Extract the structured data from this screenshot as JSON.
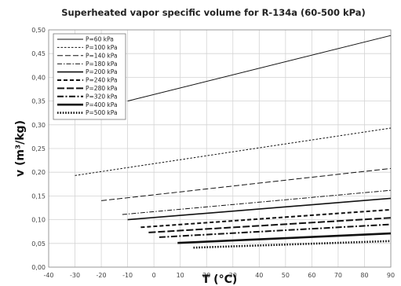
{
  "chart_data": {
    "type": "line",
    "title": "Superheated vapor specific volume for R-134a (60-500 kPa)",
    "xlabel": "T (°C)",
    "ylabel": "v (m³/kg)",
    "xlim": [
      -40,
      90
    ],
    "ylim": [
      0,
      0.5
    ],
    "x_ticks": [
      "-40",
      "-30",
      "-20",
      "-10",
      "0",
      "10",
      "20",
      "30",
      "40",
      "50",
      "60",
      "70",
      "80",
      "90"
    ],
    "y_ticks": [
      "0,00",
      "0,05",
      "0,10",
      "0,15",
      "0,20",
      "0,25",
      "0,30",
      "0,35",
      "0,40",
      "0,45",
      "0,50"
    ],
    "grid": true,
    "legend_position": "top-left",
    "series": [
      {
        "name": "P=60 kPa",
        "style": "solid-thin",
        "x": [
          -10,
          90
        ],
        "y": [
          0.35,
          0.488
        ]
      },
      {
        "name": "P=100 kPa",
        "style": "short-dash-thin",
        "x": [
          -30,
          90
        ],
        "y": [
          0.193,
          0.293
        ]
      },
      {
        "name": "P=140 kPa",
        "style": "long-dash-thin",
        "x": [
          -20,
          90
        ],
        "y": [
          0.14,
          0.208
        ]
      },
      {
        "name": "P=180 kPa",
        "style": "dash-dot-thin",
        "x": [
          -12,
          90
        ],
        "y": [
          0.111,
          0.162
        ]
      },
      {
        "name": "P=200 kPa",
        "style": "solid-medium",
        "x": [
          -10,
          90
        ],
        "y": [
          0.1,
          0.145
        ]
      },
      {
        "name": "P=240 kPa",
        "style": "dash-medium",
        "x": [
          -5,
          90
        ],
        "y": [
          0.084,
          0.121
        ]
      },
      {
        "name": "P=280 kPa",
        "style": "long-dash-medium",
        "x": [
          -2,
          90
        ],
        "y": [
          0.073,
          0.104
        ]
      },
      {
        "name": "P=320 kPa",
        "style": "dash-dot-medium",
        "x": [
          2,
          90
        ],
        "y": [
          0.063,
          0.09
        ]
      },
      {
        "name": "P=400 kPa",
        "style": "solid-thick",
        "x": [
          9,
          90
        ],
        "y": [
          0.051,
          0.071
        ]
      },
      {
        "name": "P=500 kPa",
        "style": "dotted-thick",
        "x": [
          15,
          90
        ],
        "y": [
          0.041,
          0.055
        ]
      }
    ]
  }
}
